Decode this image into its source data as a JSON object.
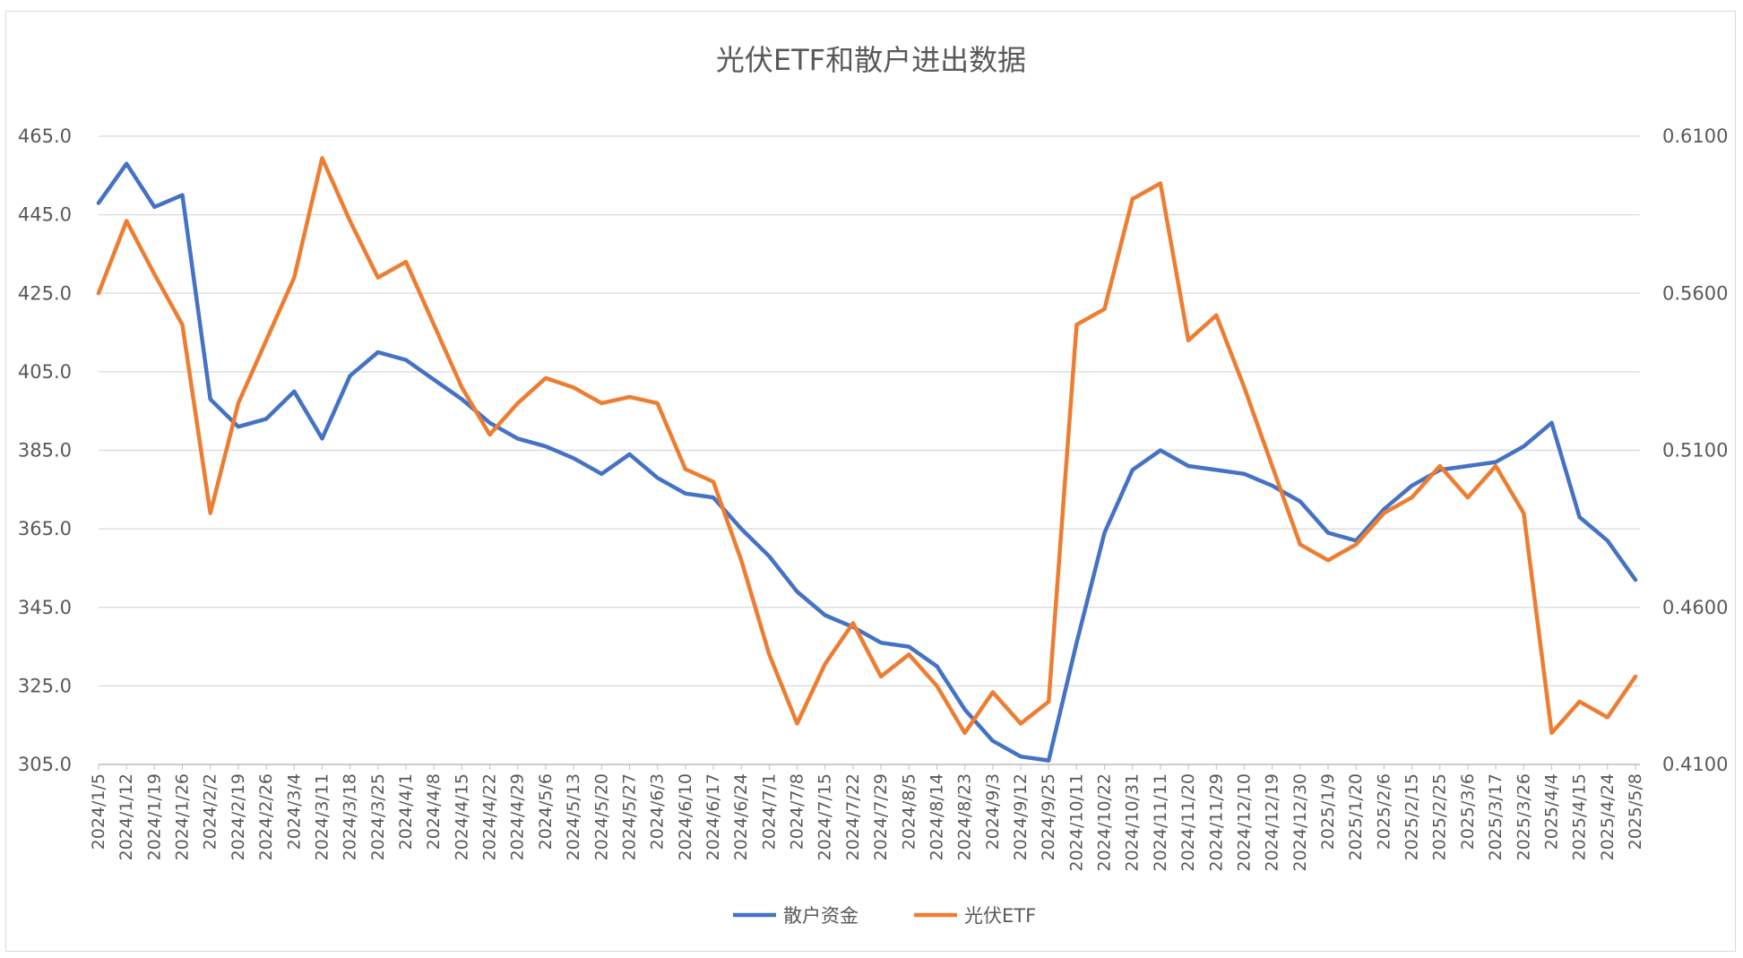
{
  "chart_data": {
    "type": "line",
    "title": "光伏ETF和散户进出数据",
    "xlabel": "",
    "ylabel": "",
    "y_left": {
      "min": 305.0,
      "max": 465.0,
      "ticks": [
        "305.0",
        "325.0",
        "345.0",
        "365.0",
        "385.0",
        "405.0",
        "425.0",
        "445.0",
        "465.0"
      ]
    },
    "y_right": {
      "min": 0.41,
      "max": 0.61,
      "ticks": [
        "0.4100",
        "0.4600",
        "0.5100",
        "0.5600",
        "0.6100"
      ]
    },
    "x_tick_labels": [
      "2024/1/5",
      "2024/1/12",
      "2024/1/19",
      "2024/1/26",
      "2024/2/2",
      "2024/2/19",
      "2024/2/26",
      "2024/3/4",
      "2024/3/11",
      "2024/3/18",
      "2024/3/25",
      "2024/4/1",
      "2024/4/8",
      "2024/4/15",
      "2024/4/22",
      "2024/4/29",
      "2024/5/6",
      "2024/5/13",
      "2024/5/20",
      "2024/5/27",
      "2024/6/3",
      "2024/6/10",
      "2024/6/17",
      "2024/6/24",
      "2024/7/1",
      "2024/7/8",
      "2024/7/15",
      "2024/7/22",
      "2024/7/29",
      "2024/8/5",
      "2024/8/14",
      "2024/8/23",
      "2024/9/3",
      "2024/9/12",
      "2024/9/25",
      "2024/10/11",
      "2024/10/22",
      "2024/10/31",
      "2024/11/11",
      "2024/11/20",
      "2024/11/29",
      "2024/12/10",
      "2024/12/19",
      "2024/12/30",
      "2025/1/9",
      "2025/1/20",
      "2025/2/6",
      "2025/2/15",
      "2025/2/25",
      "2025/3/6",
      "2025/3/17",
      "2025/3/26",
      "2025/4/4",
      "2025/4/15",
      "2025/4/24",
      "2025/5/8"
    ],
    "grid": true,
    "legend_position": "bottom",
    "series": [
      {
        "name": "散户资金",
        "axis": "left",
        "color": "#4472C4",
        "x": [
          "2024/1/5",
          "2024/1/12",
          "2024/1/19",
          "2024/1/26",
          "2024/2/2",
          "2024/2/19",
          "2024/2/26",
          "2024/3/4",
          "2024/3/11",
          "2024/3/18",
          "2024/3/25",
          "2024/4/1",
          "2024/4/8",
          "2024/4/15",
          "2024/4/22",
          "2024/4/29",
          "2024/5/6",
          "2024/5/13",
          "2024/5/20",
          "2024/5/27",
          "2024/6/3",
          "2024/6/10",
          "2024/6/17",
          "2024/6/24",
          "2024/7/1",
          "2024/7/8",
          "2024/7/15",
          "2024/7/22",
          "2024/7/29",
          "2024/8/5",
          "2024/8/14",
          "2024/8/23",
          "2024/9/3",
          "2024/9/12",
          "2024/9/25",
          "2024/10/11",
          "2024/10/22",
          "2024/10/31",
          "2024/11/11",
          "2024/11/20",
          "2024/11/29",
          "2024/12/10",
          "2024/12/19",
          "2024/12/30",
          "2025/1/9",
          "2025/1/20",
          "2025/2/6",
          "2025/2/15",
          "2025/2/25",
          "2025/3/6",
          "2025/3/17",
          "2025/3/26",
          "2025/4/4",
          "2025/4/15",
          "2025/4/24",
          "2025/5/8"
        ],
        "values": [
          448,
          458,
          447,
          450,
          398,
          391,
          393,
          400,
          388,
          404,
          410,
          408,
          403,
          398,
          392,
          388,
          386,
          383,
          379,
          384,
          378,
          374,
          373,
          365,
          358,
          349,
          343,
          340,
          336,
          335,
          330,
          319,
          311,
          307,
          306,
          336,
          364,
          380,
          385,
          381,
          380,
          379,
          376,
          372,
          364,
          362,
          370,
          376,
          380,
          381,
          382,
          386,
          392,
          368,
          362,
          352
        ]
      },
      {
        "name": "光伏ETF",
        "axis": "right",
        "color": "#ED7D31",
        "x": [
          "2024/1/5",
          "2024/1/12",
          "2024/1/19",
          "2024/1/26",
          "2024/2/2",
          "2024/2/19",
          "2024/2/26",
          "2024/3/4",
          "2024/3/11",
          "2024/3/18",
          "2024/3/25",
          "2024/4/1",
          "2024/4/8",
          "2024/4/15",
          "2024/4/22",
          "2024/4/29",
          "2024/5/6",
          "2024/5/13",
          "2024/5/20",
          "2024/5/27",
          "2024/6/3",
          "2024/6/10",
          "2024/6/17",
          "2024/6/24",
          "2024/7/1",
          "2024/7/8",
          "2024/7/15",
          "2024/7/22",
          "2024/7/29",
          "2024/8/5",
          "2024/8/14",
          "2024/8/23",
          "2024/9/3",
          "2024/9/12",
          "2024/9/25",
          "2024/10/11",
          "2024/10/22",
          "2024/10/31",
          "2024/11/11",
          "2024/11/20",
          "2024/11/29",
          "2024/12/10",
          "2024/12/19",
          "2024/12/30",
          "2025/1/9",
          "2025/1/20",
          "2025/2/6",
          "2025/2/15",
          "2025/2/25",
          "2025/3/6",
          "2025/3/17",
          "2025/3/26",
          "2025/4/4",
          "2025/4/15",
          "2025/4/24",
          "2025/5/8"
        ],
        "values": [
          0.56,
          0.583,
          0.566,
          0.55,
          0.49,
          0.525,
          0.545,
          0.565,
          0.603,
          0.583,
          0.565,
          0.57,
          0.55,
          0.53,
          0.515,
          0.525,
          0.533,
          0.53,
          0.525,
          0.527,
          0.525,
          0.504,
          0.5,
          0.475,
          0.445,
          0.423,
          0.442,
          0.455,
          0.438,
          0.445,
          0.435,
          0.42,
          0.433,
          0.423,
          0.43,
          0.55,
          0.555,
          0.59,
          0.595,
          0.545,
          0.553,
          0.53,
          0.505,
          0.48,
          0.475,
          0.48,
          0.49,
          0.495,
          0.505,
          0.495,
          0.505,
          0.49,
          0.42,
          0.43,
          0.425,
          0.438
        ]
      }
    ]
  }
}
